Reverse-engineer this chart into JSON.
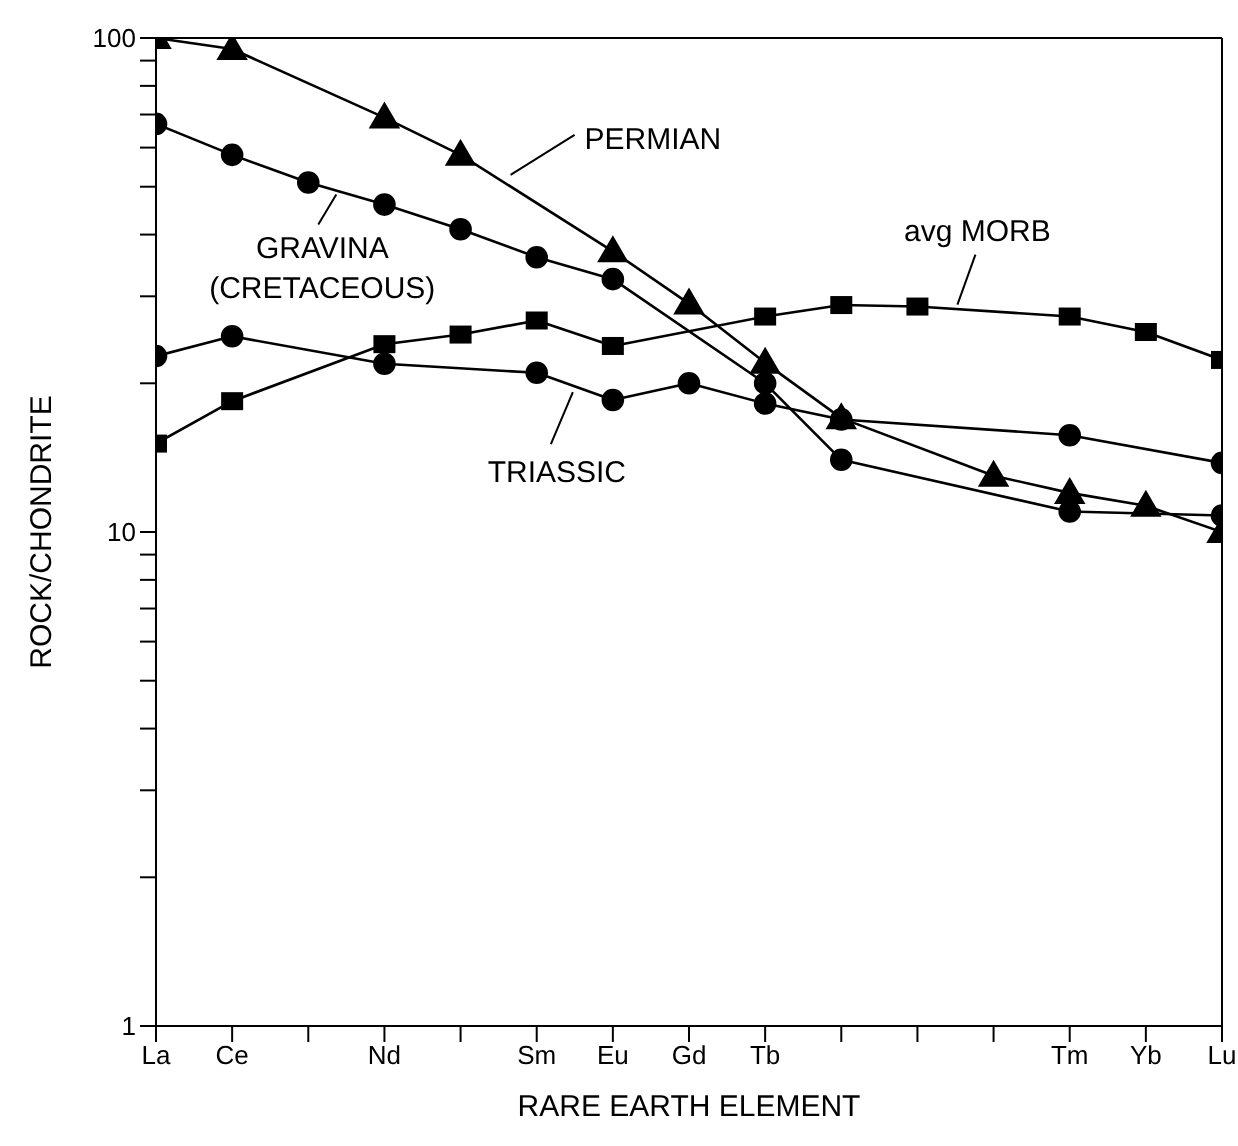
{
  "chart_data": {
    "type": "line",
    "xlabel": "RARE EARTH ELEMENT",
    "ylabel": "ROCK/CHONDRITE",
    "categories": [
      "La",
      "Ce",
      null,
      "Nd",
      null,
      "Sm",
      "Eu",
      "Gd",
      "Tb",
      null,
      null,
      null,
      "Tm",
      "Yb",
      "Lu"
    ],
    "log": "y",
    "ylim": [
      1,
      100
    ],
    "yticks": [
      1,
      {
        "value": 2,
        "label": null
      },
      {
        "value": 3,
        "label": null
      },
      {
        "value": 4,
        "label": null
      },
      {
        "value": 5,
        "label": null
      },
      {
        "value": 6,
        "label": null
      },
      {
        "value": 7,
        "label": null
      },
      {
        "value": 8,
        "label": null
      },
      {
        "value": 9,
        "label": null
      },
      10,
      {
        "value": 20,
        "label": null
      },
      {
        "value": 30,
        "label": null
      },
      {
        "value": 40,
        "label": null
      },
      {
        "value": 50,
        "label": null
      },
      {
        "value": 60,
        "label": null
      },
      {
        "value": 70,
        "label": null
      },
      {
        "value": 80,
        "label": null
      },
      {
        "value": 90,
        "label": null
      },
      100
    ],
    "line_style": "solid",
    "legend": "top",
    "series": [
      {
        "name": "PERMIAN",
        "color": "#000000",
        "marker": "triangle",
        "values": [
          100,
          95,
          null,
          69,
          58,
          null,
          37,
          29,
          22,
          17,
          null,
          13,
          12,
          11.3,
          10
        ]
      },
      {
        "name": "GRAVINA (CRETACEOUS)",
        "color": "#000000",
        "marker": "circle",
        "values": [
          67,
          58,
          51,
          46,
          41,
          36,
          32.5,
          null,
          20,
          14,
          null,
          null,
          11,
          null,
          10.8
        ]
      },
      {
        "name": "TRIASSIC",
        "color": "#000000",
        "marker": "circle",
        "values": [
          22.7,
          24.9,
          null,
          21.9,
          null,
          21,
          18.5,
          20,
          18.2,
          16.9,
          null,
          null,
          15.7,
          null,
          13.8
        ]
      },
      {
        "name": "avg MORB",
        "color": "#000000",
        "marker": "square",
        "values": [
          15.1,
          18.4,
          null,
          24,
          25.1,
          26.8,
          23.8,
          null,
          27.3,
          28.8,
          28.6,
          null,
          27.3,
          25.4,
          22.3
        ]
      }
    ]
  }
}
